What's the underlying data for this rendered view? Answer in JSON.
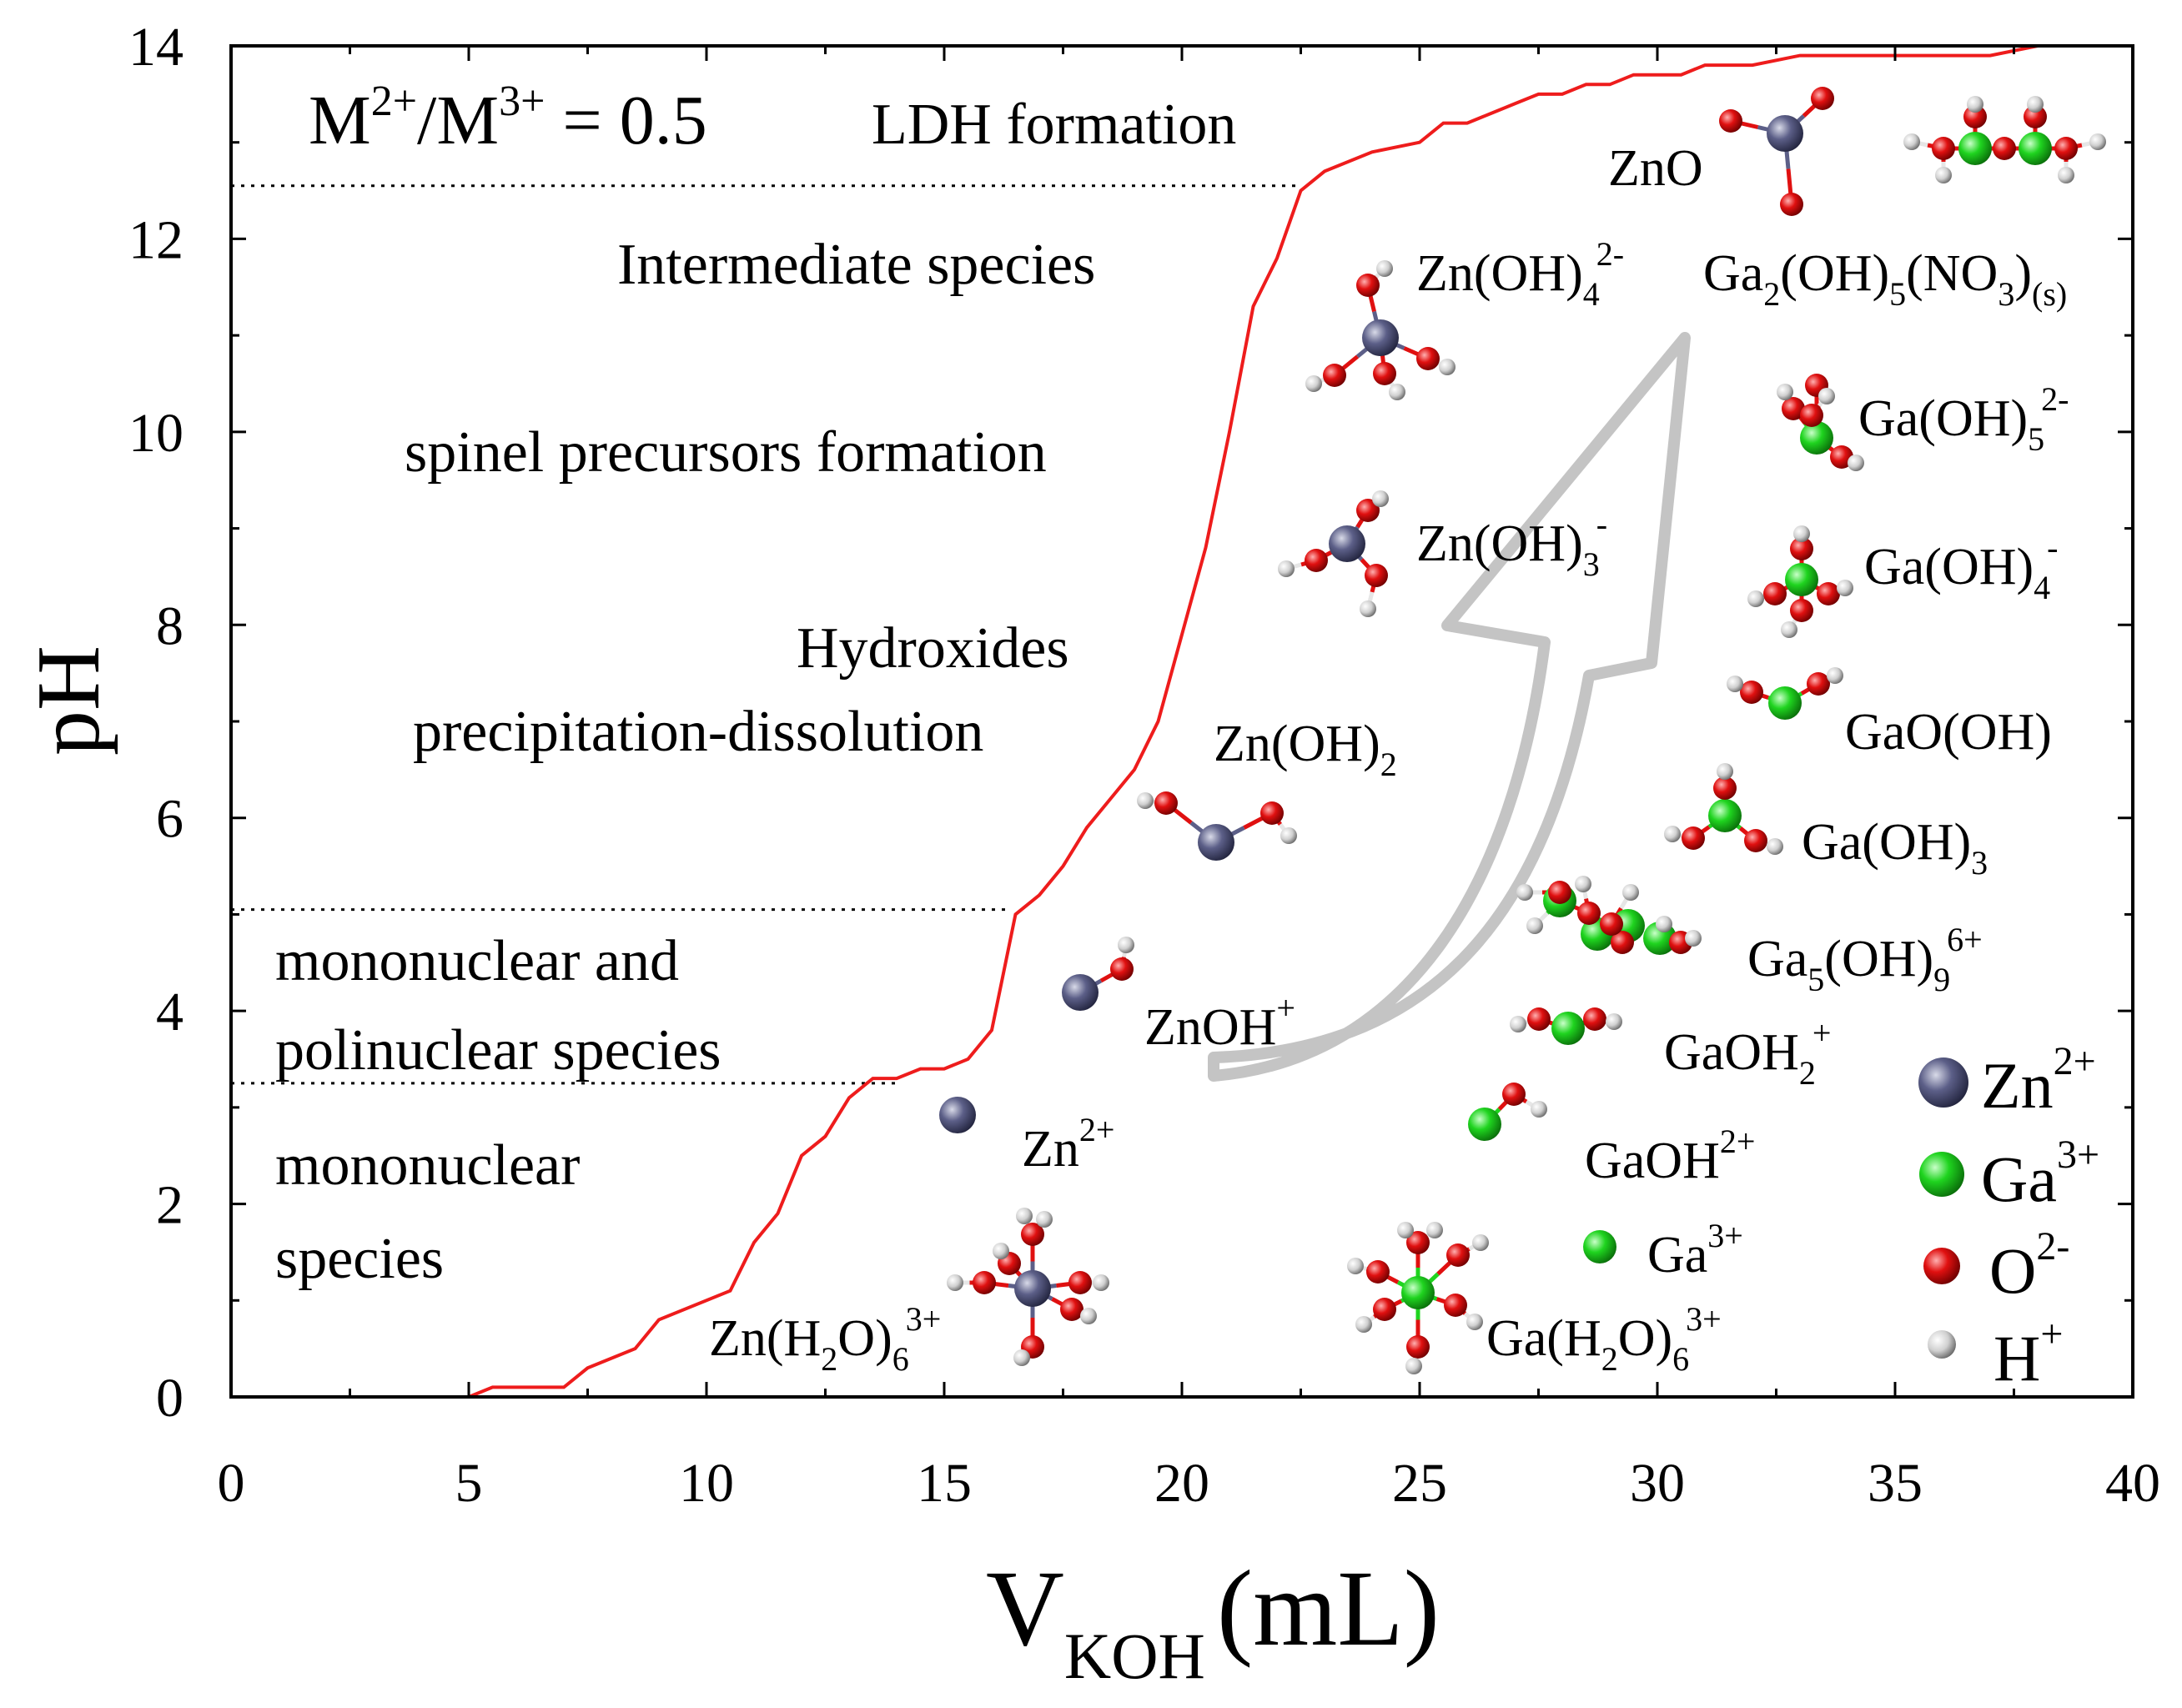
{
  "chart_data": {
    "type": "line",
    "xlabel": {
      "main": "V",
      "sub": "KOH",
      "unit": "(mL)"
    },
    "ylabel": "pH",
    "xlim": [
      0,
      40
    ],
    "ylim": [
      0,
      14
    ],
    "xticks": [
      "0",
      "5",
      "10",
      "15",
      "20",
      "25",
      "30",
      "35",
      "40"
    ],
    "yticks": [
      "0",
      "2",
      "4",
      "6",
      "8",
      "10",
      "12",
      "14"
    ],
    "line_color": "#ee1c1c",
    "series": [
      {
        "name": "titration curve",
        "x": [
          0,
          5,
          5.5,
          7,
          7.5,
          8.5,
          9,
          10.5,
          11,
          11.5,
          12,
          12.5,
          13,
          13.5,
          14,
          14.5,
          15,
          15.5,
          16,
          16.5,
          17,
          17.5,
          18,
          18.5,
          19,
          19.5,
          20,
          20.5,
          21,
          21.5,
          22,
          22.5,
          23,
          24,
          25,
          25.5,
          26,
          26.5,
          27,
          27.5,
          28,
          28.5,
          29,
          29.5,
          30,
          30.5,
          31,
          32,
          33,
          34,
          35,
          36,
          37,
          38,
          39
        ],
        "y": [
          0,
          0,
          0.1,
          0.1,
          0.3,
          0.5,
          0.8,
          1.1,
          1.6,
          1.9,
          2.5,
          2.7,
          3.1,
          3.3,
          3.3,
          3.4,
          3.4,
          3.5,
          3.8,
          5.0,
          5.2,
          5.5,
          5.9,
          6.2,
          6.5,
          7.0,
          7.9,
          8.8,
          10.0,
          11.3,
          11.8,
          12.5,
          12.7,
          12.9,
          13.0,
          13.2,
          13.2,
          13.3,
          13.4,
          13.5,
          13.5,
          13.6,
          13.6,
          13.7,
          13.7,
          13.7,
          13.8,
          13.8,
          13.9,
          13.9,
          13.9,
          13.9,
          13.9,
          14.0,
          14.0
        ]
      }
    ],
    "dotted_lines": [
      {
        "y": 12.55,
        "x_to": 22.5
      },
      {
        "y": 5.05,
        "x_to": 16.3
      },
      {
        "y": 3.25,
        "x_to": 14.0
      }
    ],
    "annotations": {
      "ratio": {
        "m": "M",
        "c2": "2+",
        "slash": "/M",
        "c3": "3+",
        "rest": " = 0.5"
      },
      "ldh": "LDH formation",
      "intermediate": "Intermediate species",
      "spinel": "spinel precursors formation",
      "hydroxides_1": "Hydroxides",
      "hydroxides_2": "precipitation-dissolution",
      "mono_poly_1": "mononuclear and",
      "mono_poly_2": "polinuclear species",
      "mono_1": "mononuclear",
      "mono_2": "species"
    },
    "species_labels": {
      "zno": "ZnO",
      "znoh4": {
        "base": "Zn(OH)",
        "sub": "4",
        "sup": "2-"
      },
      "ga2oh5no3": {
        "a": "Ga",
        "s1": "2",
        "b": "(OH)",
        "s2": "5",
        "c": "(NO",
        "s3": "3",
        "d": ")",
        "s4": "(s)"
      },
      "gaoh5": {
        "base": "Ga(OH)",
        "sub": "5",
        "sup": "2-"
      },
      "znoh3": {
        "base": "Zn(OH)",
        "sub": "3",
        "sup": "-"
      },
      "gaoh4": {
        "base": "Ga(OH)",
        "sub": "4",
        "sup": "-"
      },
      "gaooh": "GaO(OH)",
      "znoh2": {
        "base": "Zn(OH)",
        "sub": "2"
      },
      "gaoh3": {
        "base": "Ga(OH)",
        "sub": "3"
      },
      "ga5oh9": {
        "a": "Ga",
        "s1": "5",
        "b": "(OH)",
        "s2": "9",
        "sup": "6+"
      },
      "znoh": {
        "base": "ZnOH",
        "sup": "+"
      },
      "gaoh2": {
        "base": "GaOH",
        "sub": "2",
        "sup": "+"
      },
      "zn": {
        "base": "Zn",
        "sup": "2+"
      },
      "gaoh_2plus": {
        "base": "GaOH",
        "sup": "2+"
      },
      "ga": {
        "base": "Ga",
        "sup": "3+"
      },
      "znh2o6": {
        "a": "Zn(H",
        "s1": "2",
        "b": "O)",
        "s2": "6",
        "sup": "3+"
      },
      "gah2o6": {
        "a": "Ga(H",
        "s1": "2",
        "b": "O)",
        "s2": "6",
        "sup": "3+"
      }
    },
    "legend": [
      {
        "base": "Zn",
        "sup": "2+",
        "color": "#5c5f88"
      },
      {
        "base": "Ga",
        "sup": "3+",
        "color": "#1fd41f"
      },
      {
        "base": "O",
        "sup": "2-",
        "color": "#e01010"
      },
      {
        "base": "H",
        "sup": "+",
        "color": "#e6e6e6"
      }
    ],
    "atom_colors": {
      "zn": "#5c5f88",
      "ga": "#1fd41f",
      "o": "#e01010",
      "h": "#e6e6e6"
    }
  }
}
